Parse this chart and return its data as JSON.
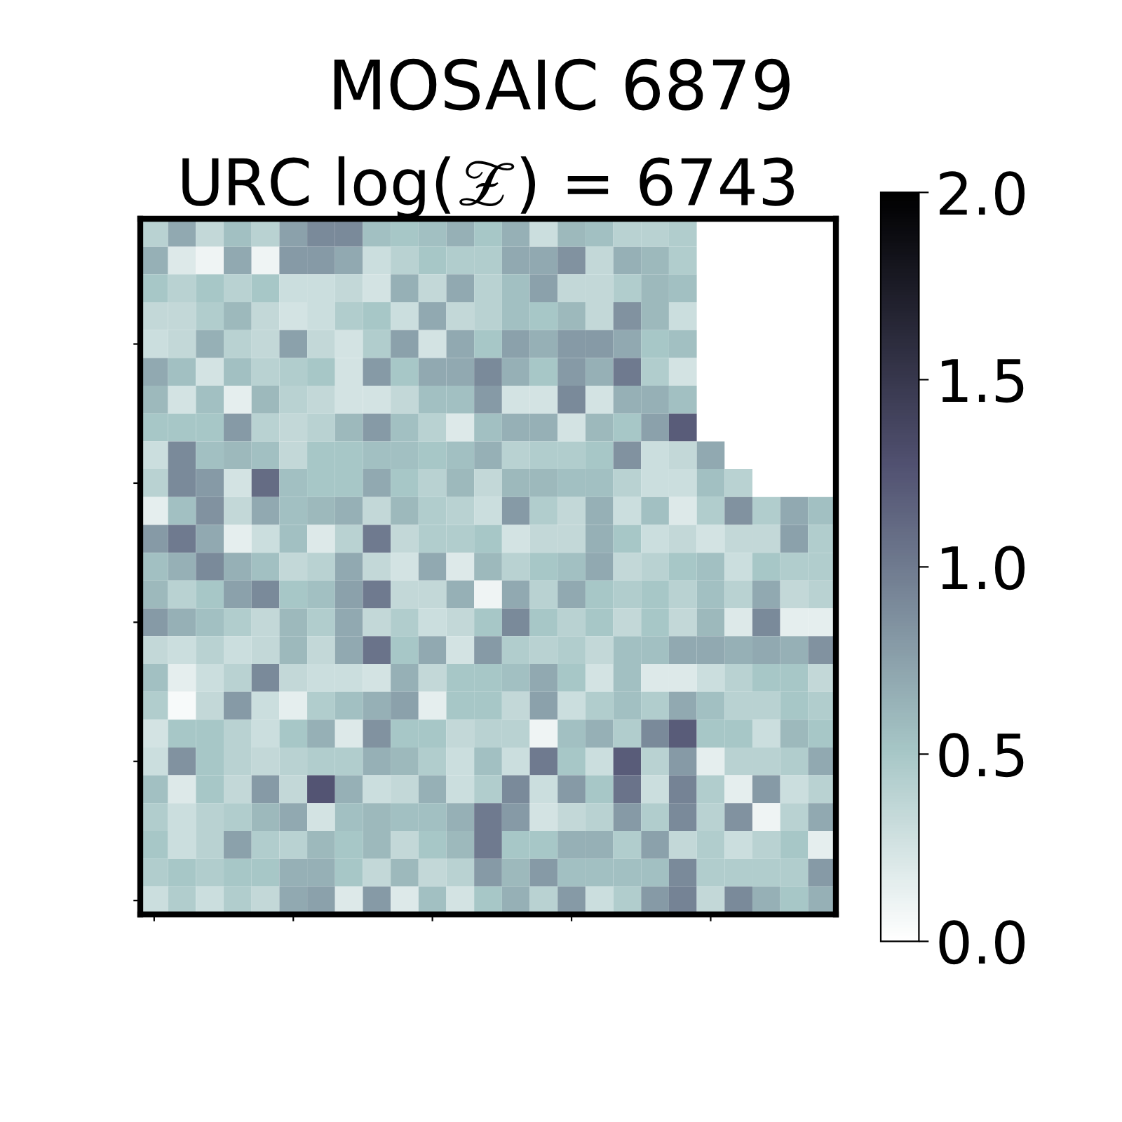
{
  "chart_data": {
    "type": "heatmap",
    "title": "MOSAIC 6879",
    "subtitle": "URC log(𝒵) = 6743",
    "categories": [
      null,
      null,
      null,
      null,
      null,
      null,
      null,
      null,
      null,
      null,
      null,
      null,
      null,
      null,
      null,
      null,
      null,
      null,
      null,
      null,
      null,
      null,
      null,
      null,
      null
    ],
    "y_categories": [
      null,
      null,
      null,
      null,
      null,
      null,
      null,
      null,
      null,
      null,
      null,
      null,
      null,
      null,
      null,
      null,
      null,
      null,
      null,
      null,
      null,
      null,
      null,
      null,
      null
    ],
    "cells": [
      [
        0.4,
        0.7,
        0.35,
        0.55,
        0.4,
        0.75,
        0.9,
        0.9,
        0.55,
        0.5,
        0.55,
        0.65,
        0.5,
        0.65,
        0.3,
        0.6,
        0.55,
        0.4,
        0.4,
        0.45,
        null,
        null,
        null,
        null,
        null
      ],
      [
        0.65,
        0.2,
        0.1,
        0.7,
        0.1,
        0.8,
        0.8,
        0.7,
        0.3,
        0.4,
        0.5,
        0.45,
        0.45,
        0.7,
        0.7,
        0.85,
        0.35,
        0.65,
        0.6,
        0.45,
        null,
        null,
        null,
        null,
        null
      ],
      [
        0.5,
        0.4,
        0.5,
        0.4,
        0.5,
        0.3,
        0.3,
        0.35,
        0.25,
        0.65,
        0.35,
        0.7,
        0.4,
        0.55,
        0.75,
        0.35,
        0.35,
        0.45,
        0.6,
        0.55,
        null,
        null,
        null,
        null,
        null
      ],
      [
        0.35,
        0.35,
        0.45,
        0.6,
        0.35,
        0.25,
        0.3,
        0.45,
        0.5,
        0.3,
        0.7,
        0.35,
        0.4,
        0.55,
        0.5,
        0.6,
        0.35,
        0.85,
        0.6,
        0.3,
        null,
        null,
        null,
        null,
        null
      ],
      [
        0.3,
        0.35,
        0.65,
        0.4,
        0.35,
        0.75,
        0.35,
        0.25,
        0.45,
        0.75,
        0.25,
        0.7,
        0.5,
        0.75,
        0.65,
        0.8,
        0.8,
        0.7,
        0.5,
        0.55,
        null,
        null,
        null,
        null,
        null
      ],
      [
        0.7,
        0.55,
        0.25,
        0.55,
        0.4,
        0.45,
        0.5,
        0.25,
        0.8,
        0.5,
        0.7,
        0.7,
        0.9,
        0.65,
        0.5,
        0.8,
        0.65,
        1.0,
        0.45,
        0.25,
        null,
        null,
        null,
        null,
        null
      ],
      [
        0.6,
        0.25,
        0.55,
        0.15,
        0.6,
        0.4,
        0.35,
        0.25,
        0.25,
        0.35,
        0.55,
        0.55,
        0.8,
        0.25,
        0.25,
        0.9,
        0.25,
        0.65,
        0.65,
        0.55,
        null,
        null,
        null,
        null,
        null
      ],
      [
        0.5,
        0.5,
        0.5,
        0.8,
        0.4,
        0.35,
        0.4,
        0.6,
        0.8,
        0.55,
        0.4,
        0.2,
        0.55,
        0.65,
        0.65,
        0.25,
        0.6,
        0.5,
        0.75,
        1.2,
        null,
        null,
        null,
        null,
        null
      ],
      [
        0.3,
        0.9,
        0.55,
        0.6,
        0.55,
        0.35,
        0.5,
        0.5,
        0.55,
        0.55,
        0.5,
        0.55,
        0.65,
        0.4,
        0.45,
        0.45,
        0.5,
        0.85,
        0.3,
        0.35,
        0.7,
        null,
        null,
        null,
        null
      ],
      [
        0.4,
        0.9,
        0.8,
        0.25,
        1.1,
        0.55,
        0.5,
        0.5,
        0.7,
        0.5,
        0.4,
        0.6,
        0.35,
        0.6,
        0.6,
        0.55,
        0.55,
        0.4,
        0.3,
        0.3,
        0.55,
        0.4,
        null,
        null,
        null
      ],
      [
        0.15,
        0.55,
        0.85,
        0.35,
        0.7,
        0.55,
        0.6,
        0.65,
        0.35,
        0.6,
        0.45,
        0.4,
        0.3,
        0.8,
        0.45,
        0.35,
        0.65,
        0.3,
        0.55,
        0.2,
        0.45,
        0.85,
        0.45,
        0.7,
        0.55
      ],
      [
        0.8,
        1.0,
        0.7,
        0.15,
        0.3,
        0.55,
        0.2,
        0.4,
        1.0,
        0.35,
        0.45,
        0.45,
        0.5,
        0.25,
        0.35,
        0.35,
        0.65,
        0.5,
        0.3,
        0.35,
        0.25,
        0.35,
        0.35,
        0.75,
        0.45
      ],
      [
        0.55,
        0.65,
        0.9,
        0.65,
        0.55,
        0.35,
        0.4,
        0.7,
        0.35,
        0.25,
        0.7,
        0.2,
        0.6,
        0.4,
        0.5,
        0.55,
        0.7,
        0.35,
        0.4,
        0.5,
        0.55,
        0.3,
        0.5,
        0.45,
        0.45
      ],
      [
        0.6,
        0.4,
        0.5,
        0.75,
        0.9,
        0.5,
        0.55,
        0.75,
        1.0,
        0.35,
        0.35,
        0.65,
        0.1,
        0.7,
        0.4,
        0.7,
        0.5,
        0.45,
        0.5,
        0.4,
        0.55,
        0.4,
        0.7,
        0.35,
        0.4
      ],
      [
        0.8,
        0.65,
        0.55,
        0.45,
        0.35,
        0.6,
        0.45,
        0.7,
        0.35,
        0.45,
        0.3,
        0.35,
        0.5,
        0.9,
        0.5,
        0.4,
        0.5,
        0.35,
        0.5,
        0.35,
        0.6,
        0.2,
        0.9,
        0.15,
        0.15
      ],
      [
        0.35,
        0.3,
        0.4,
        0.3,
        0.35,
        0.6,
        0.35,
        0.7,
        1.05,
        0.5,
        0.7,
        0.25,
        0.8,
        0.45,
        0.4,
        0.45,
        0.35,
        0.55,
        0.55,
        0.7,
        0.7,
        0.65,
        0.7,
        0.65,
        0.85
      ],
      [
        0.55,
        0.15,
        0.3,
        0.4,
        0.9,
        0.35,
        0.3,
        0.3,
        0.25,
        0.65,
        0.35,
        0.5,
        0.5,
        0.55,
        0.7,
        0.5,
        0.25,
        0.55,
        0.2,
        0.2,
        0.3,
        0.4,
        0.5,
        0.5,
        0.35
      ],
      [
        0.45,
        0.05,
        0.35,
        0.8,
        0.3,
        0.15,
        0.45,
        0.55,
        0.65,
        0.75,
        0.15,
        0.5,
        0.5,
        0.35,
        0.75,
        0.3,
        0.45,
        0.55,
        0.45,
        0.7,
        0.55,
        0.4,
        0.4,
        0.5,
        0.45
      ],
      [
        0.25,
        0.5,
        0.5,
        0.4,
        0.3,
        0.5,
        0.65,
        0.2,
        0.85,
        0.5,
        0.5,
        0.35,
        0.4,
        0.4,
        0.1,
        0.55,
        0.65,
        0.45,
        0.9,
        1.2,
        0.5,
        0.5,
        0.3,
        0.6,
        0.5
      ],
      [
        0.3,
        0.85,
        0.5,
        0.4,
        0.35,
        0.4,
        0.45,
        0.45,
        0.65,
        0.6,
        0.45,
        0.3,
        0.55,
        0.3,
        1.0,
        0.5,
        0.3,
        1.2,
        0.4,
        0.8,
        0.15,
        0.4,
        0.4,
        0.45,
        0.7
      ],
      [
        0.55,
        0.2,
        0.5,
        0.35,
        0.8,
        0.35,
        1.25,
        0.65,
        0.3,
        0.35,
        0.65,
        0.3,
        0.45,
        0.9,
        0.3,
        0.8,
        0.5,
        1.05,
        0.3,
        0.95,
        0.45,
        0.15,
        0.8,
        0.3,
        0.4
      ],
      [
        0.45,
        0.3,
        0.4,
        0.45,
        0.6,
        0.7,
        0.25,
        0.55,
        0.6,
        0.55,
        0.55,
        0.65,
        1.0,
        0.8,
        0.25,
        0.35,
        0.4,
        0.8,
        0.45,
        0.9,
        0.4,
        0.85,
        0.1,
        0.4,
        0.7
      ],
      [
        0.5,
        0.3,
        0.4,
        0.75,
        0.45,
        0.4,
        0.6,
        0.5,
        0.6,
        0.35,
        0.5,
        0.6,
        1.0,
        0.5,
        0.5,
        0.65,
        0.65,
        0.45,
        0.75,
        0.35,
        0.45,
        0.3,
        0.4,
        0.5,
        0.15
      ],
      [
        0.45,
        0.5,
        0.45,
        0.5,
        0.5,
        0.65,
        0.65,
        0.5,
        0.35,
        0.6,
        0.35,
        0.4,
        0.8,
        0.6,
        0.8,
        0.55,
        0.55,
        0.55,
        0.55,
        0.9,
        0.45,
        0.45,
        0.45,
        0.45,
        0.8
      ],
      [
        0.3,
        0.45,
        0.3,
        0.45,
        0.35,
        0.7,
        0.75,
        0.2,
        0.8,
        0.2,
        0.55,
        0.25,
        0.5,
        0.65,
        0.4,
        0.8,
        0.3,
        0.45,
        0.8,
        0.95,
        0.35,
        0.9,
        0.65,
        0.5,
        0.65
      ]
    ],
    "clim": [
      0,
      2
    ],
    "cticks": [
      {
        "value": 0,
        "label": "0.0"
      },
      {
        "value": 0.5,
        "label": "0.5"
      },
      {
        "value": 1,
        "label": "1.0"
      },
      {
        "value": 1.5,
        "label": "1.5"
      },
      {
        "value": 2,
        "label": "2.0"
      }
    ],
    "tick_labels": false
  }
}
